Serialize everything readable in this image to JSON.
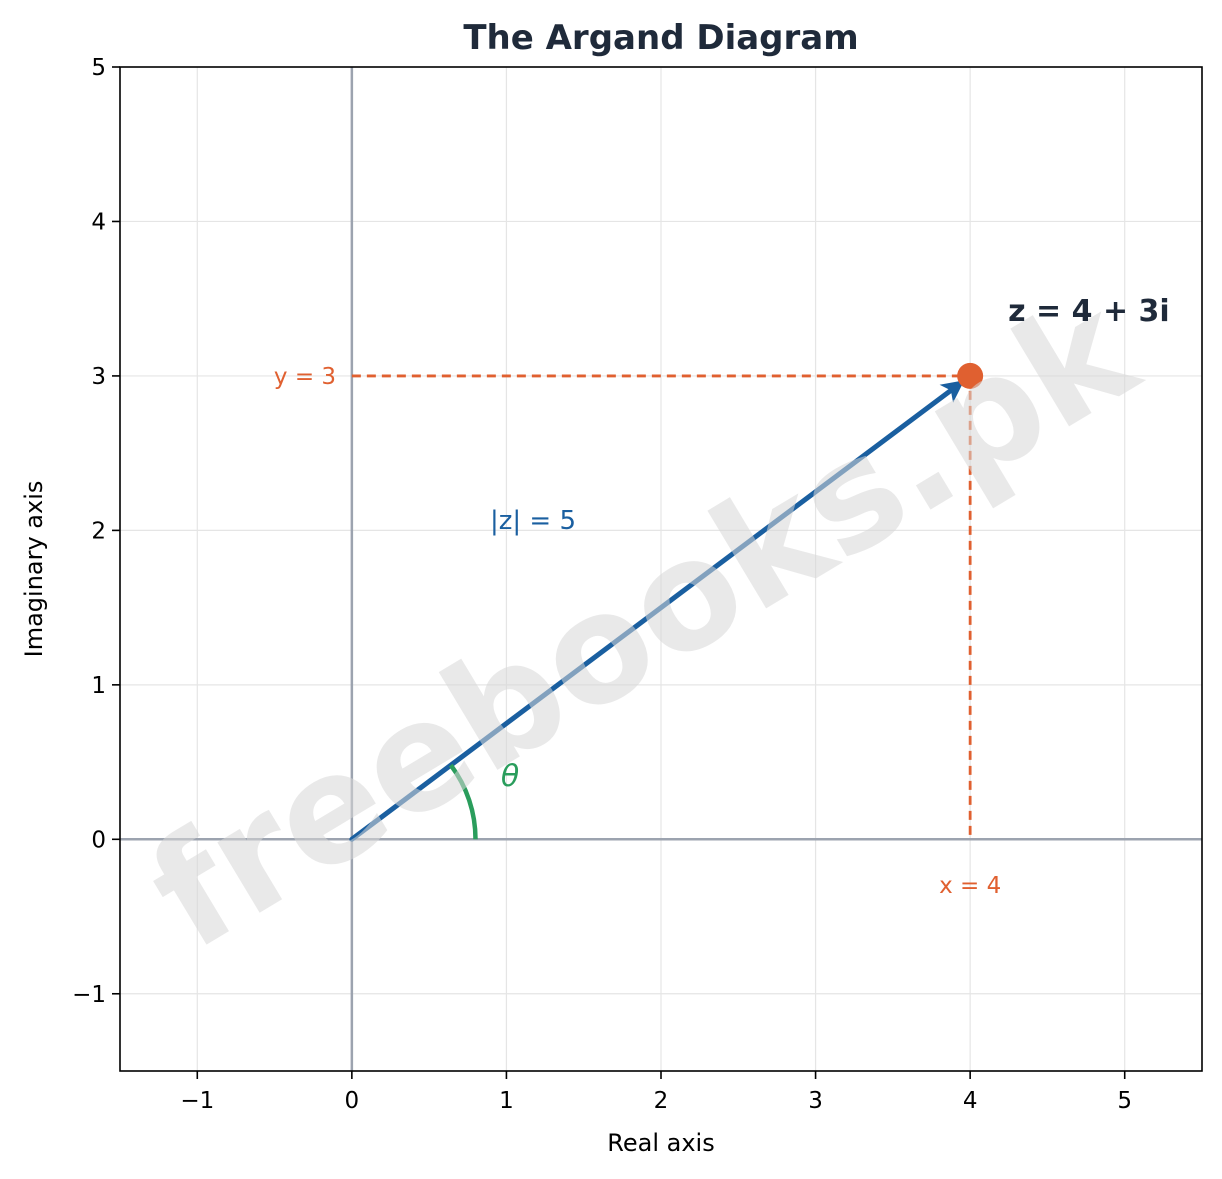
{
  "chart_data": {
    "type": "scatter",
    "title": "The Argand Diagram",
    "xlabel": "Real axis",
    "ylabel": "Imaginary axis",
    "xlim": [
      -1.5,
      5.5
    ],
    "ylim": [
      -1.5,
      5
    ],
    "xticks": [
      -1,
      0,
      1,
      2,
      3,
      4,
      5
    ],
    "yticks": [
      -1,
      0,
      1,
      2,
      3,
      4,
      5
    ],
    "xtick_labels": [
      "−1",
      "0",
      "1",
      "2",
      "3",
      "4",
      "5"
    ],
    "ytick_labels": [
      "−1",
      "0",
      "1",
      "2",
      "3",
      "4",
      "5"
    ],
    "grid": true,
    "point": {
      "x": 4,
      "y": 3,
      "label": "z = 4 + 3i"
    },
    "vector": {
      "from": [
        0,
        0
      ],
      "to": [
        4,
        3
      ],
      "label": "|z| = 5"
    },
    "angle": {
      "label": "θ"
    },
    "projection_labels": {
      "x": "x = 4",
      "y": "y = 3"
    },
    "watermark": "freebooks.pk",
    "colors": {
      "vector": "#1a5fa0",
      "point": "#e06030",
      "projection": "#e06030",
      "angle": "#2a9d5c",
      "axis_lines": "#9ca3af",
      "grid": "#e5e5e5",
      "title": "#1f2a3a",
      "point_label": "#1f2a3a"
    }
  }
}
